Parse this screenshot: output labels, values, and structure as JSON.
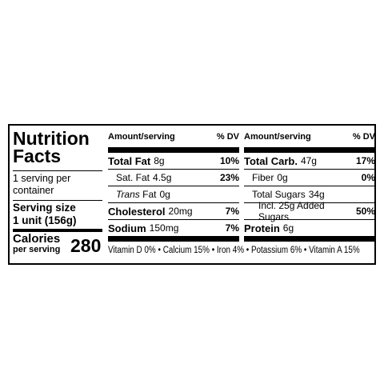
{
  "label": {
    "title": "Nutrition Facts",
    "servings": "1 serving per container",
    "serving_size_label": "Serving size",
    "serving_size": "1 unit (156g)",
    "calories_label": "Calories",
    "calories_sub": "per serving",
    "calories": 280,
    "columns": [
      {
        "header_amount": "Amount/serving",
        "header_dv": "% DV",
        "rows": [
          {
            "label": "Total Fat",
            "amount": "8g",
            "dv": "10%"
          },
          {
            "label": "Sat. Fat",
            "amount": "4.5g",
            "dv": "23%"
          },
          {
            "label_italic": "Trans",
            "label": "Fat",
            "amount": "0g"
          },
          {
            "label": "Cholesterol",
            "amount": "20mg",
            "dv": "7%"
          },
          {
            "label": "Sodium",
            "amount": "150mg",
            "dv": "7%"
          }
        ]
      },
      {
        "header_amount": "Amount/serving",
        "header_dv": "% DV",
        "rows": [
          {
            "label": "Total Carb.",
            "amount": "47g",
            "dv": "17%"
          },
          {
            "label": "Fiber",
            "amount": "0g",
            "dv": "0%"
          },
          {
            "label": "Total Sugars",
            "amount": "34g"
          },
          {
            "label": "Incl. 25g Added Sugars",
            "dv": "50%"
          },
          {
            "label": "Protein",
            "amount": "6g"
          }
        ]
      }
    ],
    "vitamins": "Vitamin D 0% • Calcium 15% • Iron 4% • Potassium 6% • Vitamin A 15%"
  }
}
